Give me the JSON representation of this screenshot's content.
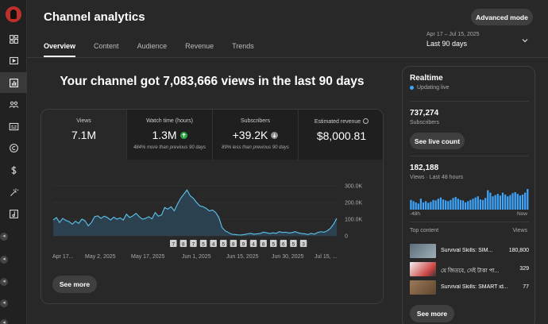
{
  "header": {
    "title": "Channel analytics",
    "advanced_mode": "Advanced mode"
  },
  "tabs": [
    {
      "label": "Overview",
      "active": true
    },
    {
      "label": "Content",
      "active": false
    },
    {
      "label": "Audience",
      "active": false
    },
    {
      "label": "Revenue",
      "active": false
    },
    {
      "label": "Trends",
      "active": false
    }
  ],
  "date_picker": {
    "range": "Apr 17 – Jul 15, 2025",
    "period": "Last 90 days"
  },
  "headline": "Your channel got 7,083,666 views in the last 90 days",
  "metrics": [
    {
      "label": "Views",
      "value": "7.1M",
      "note": "",
      "trend": ""
    },
    {
      "label": "Watch time (hours)",
      "value": "1.3M",
      "note": "484% more than previous 90 days",
      "trend": "up"
    },
    {
      "label": "Subscribers",
      "value": "+39.2K",
      "note": "89% less than previous 90 days",
      "trend": "down"
    },
    {
      "label": "Estimated revenue",
      "value": "$8,000.81",
      "note": "",
      "trend": ""
    }
  ],
  "chart_data": {
    "type": "area",
    "x_tick_labels": [
      "Apr 17...",
      "May 2, 2025",
      "May 17, 2025",
      "Jun 1, 2025",
      "Jun 15, 2025",
      "Jun 30, 2025",
      "Jul 15, ..."
    ],
    "y_tick_labels": [
      "300.0K",
      "200.0K",
      "100.0K",
      "0"
    ],
    "ylim": [
      0,
      300000
    ],
    "values": [
      95000,
      110000,
      80000,
      105000,
      92000,
      85000,
      70000,
      88000,
      75000,
      100000,
      90000,
      60000,
      80000,
      115000,
      120000,
      105000,
      118000,
      110000,
      95000,
      112000,
      100000,
      108000,
      95000,
      130000,
      110000,
      120000,
      135000,
      115000,
      100000,
      105000,
      115000,
      102000,
      140000,
      118000,
      125000,
      170000,
      160000,
      175000,
      150000,
      190000,
      225000,
      250000,
      275000,
      240000,
      225000,
      200000,
      180000,
      175000,
      165000,
      150000,
      155000,
      140000,
      110000,
      50000,
      30000,
      20000,
      10000,
      8000,
      6000,
      5000,
      8000,
      12000,
      15000,
      10000,
      12000,
      14000,
      22000,
      18000,
      14000,
      18000,
      15000,
      25000,
      20000,
      22000,
      17000,
      20000,
      25000,
      18000,
      14000,
      12000,
      8000,
      15000,
      10000,
      20000,
      25000,
      22000,
      30000,
      45000,
      70000,
      105000
    ],
    "markers": [
      "7",
      "8",
      "7",
      "5",
      "4",
      "5",
      "8",
      "9",
      "4",
      "8",
      "5",
      "6",
      "5",
      "3"
    ]
  },
  "card": {
    "see_more": "See more"
  },
  "realtime": {
    "title": "Realtime",
    "live": "Updating live",
    "subscribers_value": "737,274",
    "subscribers_label": "Subscribers",
    "see_live_count": "See live count",
    "views_value": "182,188",
    "views_label": "Views · Last 48 hours",
    "axis_start": "-48h",
    "axis_end": "Now",
    "hourly_values": [
      40,
      35,
      30,
      25,
      45,
      30,
      35,
      28,
      32,
      40,
      38,
      45,
      50,
      42,
      38,
      35,
      40,
      48,
      52,
      45,
      40,
      38,
      30,
      35,
      40,
      45,
      50,
      55,
      42,
      40,
      48,
      80,
      70,
      55,
      60,
      65,
      58,
      70,
      62,
      55,
      60,
      68,
      72,
      65,
      58,
      62,
      70,
      85
    ],
    "top_content_label": "Top content",
    "views_col_label": "Views",
    "top_content": [
      {
        "title": "Survival Skills: SIM...",
        "views": "180,800",
        "thumb_color": "#6f7e8a"
      },
      {
        "title": "যে জিতবে, সেই টাকা পা...",
        "views": "329",
        "thumb_color": "#e8e8e8"
      },
      {
        "title": "Survival Skills: SMART id...",
        "views": "77",
        "thumb_color": "#8a6a4e"
      }
    ],
    "see_more": "See more"
  }
}
